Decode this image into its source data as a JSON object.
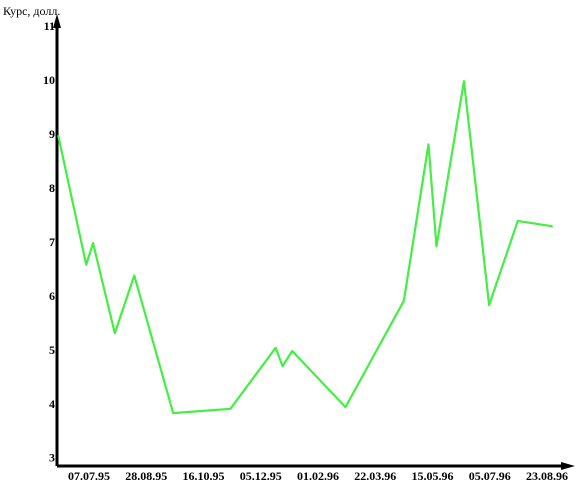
{
  "chart_data": {
    "type": "line",
    "y_label": "Курс, долл.",
    "x": [
      0.46,
      0.95,
      1.07,
      1.45,
      1.79,
      2.47,
      3.47,
      4.26,
      4.38,
      4.55,
      5.48,
      6.5,
      6.93,
      7.07,
      7.55,
      7.99,
      8.49,
      9.1
    ],
    "series": [
      {
        "color": "#44ee44",
        "values": [
          9.0,
          6.6,
          7.0,
          5.33,
          6.4,
          3.85,
          3.93,
          5.06,
          4.72,
          5.0,
          3.96,
          5.93,
          8.83,
          6.94,
          10.0,
          5.85,
          7.41,
          7.31
        ]
      }
    ],
    "xlim": [
      0.44,
      9.49
    ],
    "xticks": [
      {
        "value": 1,
        "label": "07.07.95"
      },
      {
        "value": 2,
        "label": "28.08.95"
      },
      {
        "value": 3,
        "label": "16.10.95"
      },
      {
        "value": 4,
        "label": "05.12.95"
      },
      {
        "value": 5,
        "label": "01.02.96"
      },
      {
        "value": 6,
        "label": "22.03.96"
      },
      {
        "value": 7,
        "label": "15.05.96"
      },
      {
        "value": 8,
        "label": "05.07.96"
      },
      {
        "value": 9,
        "label": "23.08.96"
      }
    ],
    "ylim": [
      2.87,
      11.17
    ],
    "yticks": [
      3,
      4,
      5,
      6,
      7,
      8,
      9,
      10,
      11
    ],
    "grid": false
  }
}
